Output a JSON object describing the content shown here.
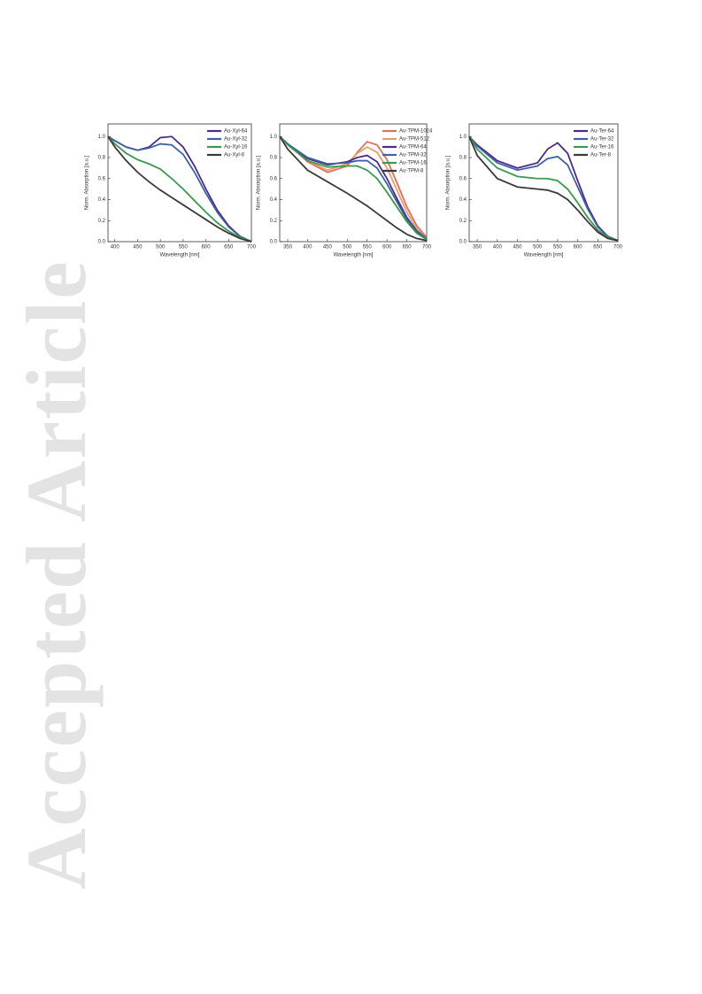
{
  "watermark": "Accepted Article",
  "chart_data": [
    {
      "type": "line",
      "xlabel": "Wavelength [nm]",
      "ylabel": "Norm. Absorption [a.u.]",
      "xlim": [
        385,
        700
      ],
      "ylim": [
        0,
        1.12
      ],
      "xticks": [
        400,
        450,
        500,
        550,
        600,
        650,
        700
      ],
      "yticks": [
        {
          "value": 0,
          "label": "0.0"
        },
        0.2,
        0.4,
        0.6,
        0.8,
        {
          "value": 1,
          "label": "1.0"
        }
      ],
      "legend": "upper right",
      "x": [
        385,
        400,
        425,
        450,
        475,
        500,
        525,
        550,
        575,
        600,
        625,
        650,
        675,
        700
      ],
      "series": [
        {
          "name": "Au-Xyl-64",
          "color": "#4b2a8c",
          "values": [
            1.0,
            0.96,
            0.9,
            0.87,
            0.9,
            0.99,
            1.0,
            0.9,
            0.72,
            0.5,
            0.3,
            0.15,
            0.05,
            0.0
          ]
        },
        {
          "name": "Au-Xyl-32",
          "color": "#3f5fa8",
          "values": [
            1.0,
            0.96,
            0.9,
            0.87,
            0.89,
            0.93,
            0.92,
            0.83,
            0.66,
            0.46,
            0.28,
            0.14,
            0.05,
            0.0
          ]
        },
        {
          "name": "Au-Xyl-16",
          "color": "#3a9a50",
          "values": [
            1.0,
            0.93,
            0.84,
            0.78,
            0.74,
            0.69,
            0.6,
            0.5,
            0.39,
            0.28,
            0.18,
            0.1,
            0.04,
            0.0
          ]
        },
        {
          "name": "Au-Xyl-8",
          "color": "#3a3a3a",
          "values": [
            1.0,
            0.9,
            0.77,
            0.66,
            0.57,
            0.49,
            0.42,
            0.35,
            0.28,
            0.21,
            0.14,
            0.08,
            0.03,
            0.0
          ]
        }
      ]
    },
    {
      "type": "line",
      "xlabel": "Wavelength [nm]",
      "ylabel": "Norm. Absorption [a.u.]",
      "xlim": [
        330,
        700
      ],
      "ylim": [
        0,
        1.12
      ],
      "xticks": [
        350,
        400,
        450,
        500,
        550,
        600,
        650,
        700
      ],
      "yticks": [
        {
          "value": 0,
          "label": "0.0"
        },
        0.2,
        0.4,
        0.6,
        0.8,
        {
          "value": 1,
          "label": "1.0"
        }
      ],
      "legend": "upper right",
      "x": [
        330,
        350,
        400,
        450,
        500,
        525,
        550,
        575,
        600,
        625,
        650,
        675,
        700
      ],
      "series": [
        {
          "name": "Au-TPM-1024",
          "color": "#e0705e",
          "values": [
            1.0,
            0.93,
            0.76,
            0.66,
            0.72,
            0.85,
            0.95,
            0.92,
            0.78,
            0.56,
            0.33,
            0.15,
            0.04
          ]
        },
        {
          "name": "Au-TPM-512",
          "color": "#e8a060",
          "values": [
            1.0,
            0.93,
            0.77,
            0.68,
            0.74,
            0.84,
            0.9,
            0.85,
            0.7,
            0.49,
            0.28,
            0.12,
            0.03
          ]
        },
        {
          "name": "Au-TPM-64",
          "color": "#4b2a8c",
          "values": [
            1.0,
            0.93,
            0.79,
            0.73,
            0.76,
            0.8,
            0.82,
            0.76,
            0.6,
            0.41,
            0.23,
            0.1,
            0.03
          ]
        },
        {
          "name": "Au-TPM-32",
          "color": "#3f5fa8",
          "values": [
            1.0,
            0.93,
            0.8,
            0.74,
            0.75,
            0.77,
            0.77,
            0.7,
            0.55,
            0.38,
            0.21,
            0.09,
            0.03
          ]
        },
        {
          "name": "Au-TPM-16",
          "color": "#3a9a50",
          "values": [
            1.0,
            0.92,
            0.77,
            0.71,
            0.72,
            0.72,
            0.68,
            0.6,
            0.47,
            0.33,
            0.19,
            0.08,
            0.02
          ]
        },
        {
          "name": "Au-TPM-8",
          "color": "#3a3a3a",
          "values": [
            1.0,
            0.88,
            0.68,
            0.57,
            0.46,
            0.4,
            0.34,
            0.27,
            0.2,
            0.13,
            0.07,
            0.03,
            0.01
          ]
        }
      ]
    },
    {
      "type": "line",
      "xlabel": "Wavelength [nm]",
      "ylabel": "Norm. Absorption [a.u.]",
      "xlim": [
        330,
        700
      ],
      "ylim": [
        0,
        1.12
      ],
      "xticks": [
        350,
        400,
        450,
        500,
        550,
        600,
        650,
        700
      ],
      "yticks": [
        {
          "value": 0,
          "label": "0.0"
        },
        0.2,
        0.4,
        0.6,
        0.8,
        {
          "value": 1,
          "label": "1.0"
        }
      ],
      "legend": "upper right",
      "x": [
        330,
        350,
        400,
        450,
        500,
        525,
        550,
        575,
        600,
        625,
        650,
        675,
        700
      ],
      "series": [
        {
          "name": "Au-Ter-64",
          "color": "#4b2a8c",
          "values": [
            1.0,
            0.92,
            0.77,
            0.7,
            0.75,
            0.88,
            0.94,
            0.84,
            0.58,
            0.33,
            0.15,
            0.05,
            0.01
          ]
        },
        {
          "name": "Au-Ter-32",
          "color": "#3f5fa8",
          "values": [
            1.0,
            0.91,
            0.75,
            0.68,
            0.72,
            0.79,
            0.81,
            0.73,
            0.52,
            0.31,
            0.14,
            0.05,
            0.01
          ]
        },
        {
          "name": "Au-Ter-16",
          "color": "#3a9a50",
          "values": [
            1.0,
            0.88,
            0.7,
            0.62,
            0.6,
            0.6,
            0.58,
            0.5,
            0.37,
            0.23,
            0.11,
            0.04,
            0.01
          ]
        },
        {
          "name": "Au-Ter-8",
          "color": "#3a3a3a",
          "values": [
            1.0,
            0.82,
            0.6,
            0.52,
            0.5,
            0.49,
            0.46,
            0.4,
            0.3,
            0.19,
            0.09,
            0.03,
            0.01
          ]
        }
      ]
    }
  ]
}
